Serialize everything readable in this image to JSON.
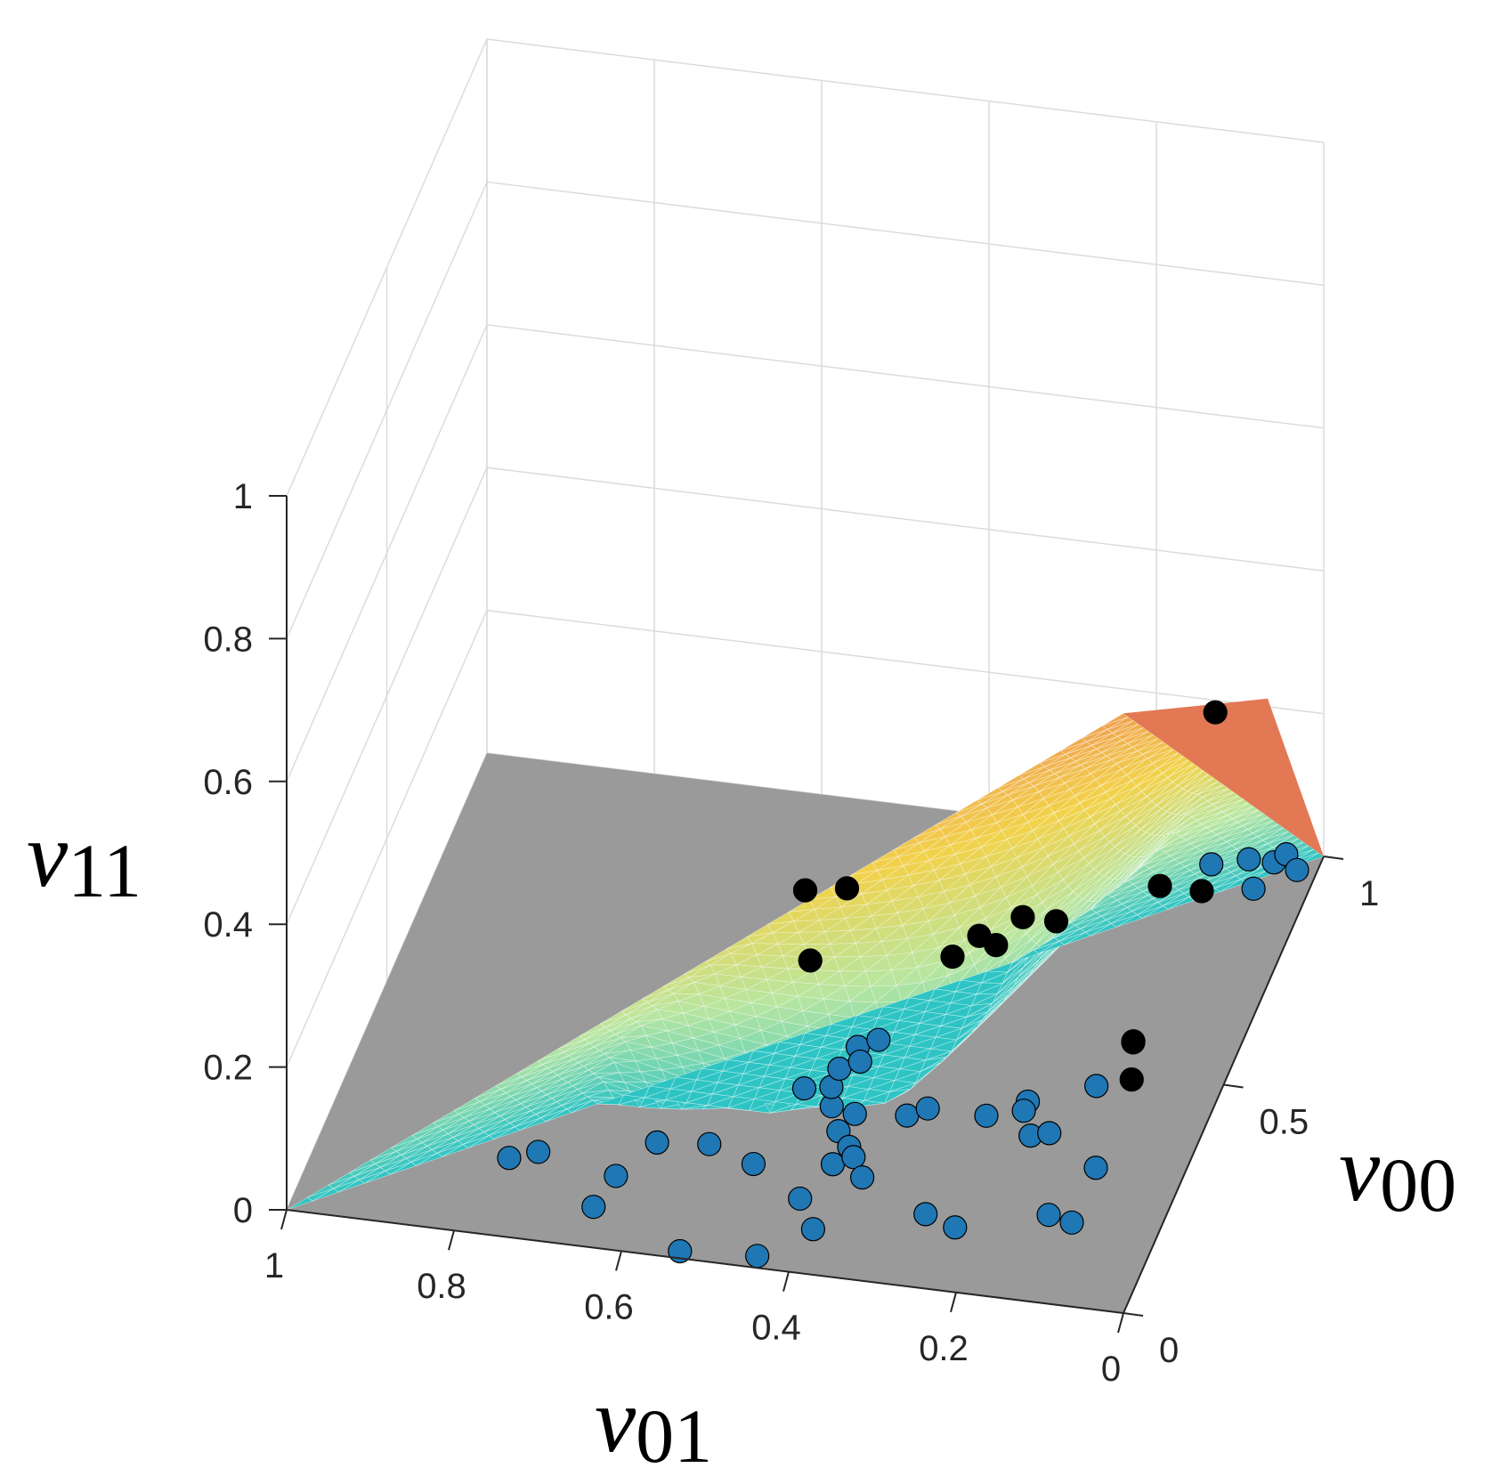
{
  "chart_data": {
    "type": "scatter",
    "projection": "3d",
    "title": "",
    "axes": {
      "x": {
        "label": "ν01",
        "symbol": "ν",
        "subscript": "01",
        "range": [
          0,
          1
        ],
        "ticks": [
          0,
          0.2,
          0.4,
          0.6,
          0.8,
          1
        ],
        "tick_labels": [
          "0",
          "0.2",
          "0.4",
          "0.6",
          "0.8",
          "1"
        ]
      },
      "y": {
        "label": "ν00",
        "symbol": "ν",
        "subscript": "00",
        "range": [
          0,
          1
        ],
        "ticks": [
          0,
          0.5,
          1
        ],
        "tick_labels": [
          "0",
          "0.5",
          "1"
        ]
      },
      "z": {
        "label": "ν11",
        "symbol": "ν",
        "subscript": "11",
        "range": [
          0,
          1
        ],
        "ticks": [
          0,
          0.2,
          0.4,
          0.6,
          0.8,
          1
        ],
        "tick_labels": [
          "0",
          "0.2",
          "0.4",
          "0.6",
          "0.8",
          "1"
        ]
      }
    },
    "grid": true,
    "legend": "none",
    "surfaces": [
      {
        "name": "",
        "kind": "surface",
        "colormap": [
          "#2ec4c4",
          "#b8e6a0",
          "#f2d24a",
          "#f0a050"
        ],
        "mesh_color": "#ffffff",
        "peak": [
          0,
          0,
          0.84
        ],
        "corners": [
          [
            1,
            0,
            0
          ],
          [
            0,
            1,
            0
          ],
          [
            0,
            0,
            0.84
          ]
        ]
      },
      {
        "name": "",
        "kind": "plane",
        "color": "#e2714c",
        "corners": [
          [
            0,
            0,
            0.84
          ],
          [
            0,
            1,
            0
          ],
          [
            0,
            0.72,
            0.4
          ]
        ]
      },
      {
        "name": "",
        "kind": "floor",
        "color": "#9a9a9a",
        "corners": [
          [
            1,
            0,
            0
          ],
          [
            1,
            1,
            0
          ],
          [
            0,
            1,
            0
          ],
          [
            0,
            0,
            0
          ]
        ]
      }
    ],
    "series": [
      {
        "color": "#1f77b4",
        "points": [
          [
            0.12,
            0.94,
            0.01
          ],
          [
            0.08,
            0.96,
            0.01
          ],
          [
            0.05,
            0.96,
            0.01
          ],
          [
            0.04,
            0.98,
            0.01
          ],
          [
            0.02,
            0.95,
            0.01
          ],
          [
            0.06,
            0.9,
            0.01
          ],
          [
            0.77,
            0.15,
            0.01
          ],
          [
            0.74,
            0.17,
            0.01
          ],
          [
            0.64,
            0.14,
            0.01
          ],
          [
            0.61,
            0.22,
            0.01
          ],
          [
            0.55,
            0.23,
            0.01
          ],
          [
            0.65,
            0.07,
            0.01
          ],
          [
            0.53,
            0.0,
            0.01
          ],
          [
            0.49,
            0.2,
            0.01
          ],
          [
            0.43,
            0.34,
            0.01
          ],
          [
            0.47,
            0.37,
            0.01
          ],
          [
            0.44,
            0.38,
            0.01
          ],
          [
            0.44,
            0.42,
            0.01
          ],
          [
            0.43,
            0.47,
            0.01
          ],
          [
            0.42,
            0.44,
            0.01
          ],
          [
            0.41,
            0.49,
            0.01
          ],
          [
            0.4,
            0.33,
            0.01
          ],
          [
            0.41,
            0.29,
            0.01
          ],
          [
            0.39,
            0.26,
            0.01
          ],
          [
            0.4,
            0.22,
            0.01
          ],
          [
            0.38,
            0.24,
            0.01
          ],
          [
            0.36,
            0.2,
            0.01
          ],
          [
            0.42,
            0.14,
            0.01
          ],
          [
            0.39,
            0.08,
            0.01
          ],
          [
            0.44,
            0.01,
            0.01
          ],
          [
            0.34,
            0.34,
            0.01
          ],
          [
            0.32,
            0.36,
            0.01
          ],
          [
            0.25,
            0.36,
            0.01
          ],
          [
            0.21,
            0.4,
            0.01
          ],
          [
            0.21,
            0.38,
            0.01
          ],
          [
            0.19,
            0.33,
            0.01
          ],
          [
            0.17,
            0.34,
            0.01
          ],
          [
            0.14,
            0.45,
            0.01
          ],
          [
            0.1,
            0.28,
            0.01
          ],
          [
            0.27,
            0.14,
            0.01
          ],
          [
            0.23,
            0.12,
            0.01
          ],
          [
            0.13,
            0.17,
            0.01
          ],
          [
            0.1,
            0.16,
            0.01
          ],
          [
            0.12,
            0.55,
            0.01
          ]
        ]
      },
      {
        "color": "#000000",
        "points": [
          [
            0.12,
            0.96,
            0.21
          ],
          [
            0.2,
            0.5,
            0.2
          ],
          [
            0.24,
            0.5,
            0.2
          ],
          [
            0.5,
            0.5,
            0.2
          ],
          [
            0.45,
            0.5,
            0.21
          ],
          [
            0.28,
            0.45,
            0.2
          ],
          [
            0.3,
            0.4,
            0.2
          ],
          [
            0.1,
            0.6,
            0.2
          ],
          [
            0.05,
            0.6,
            0.2
          ],
          [
            0.47,
            0.4,
            0.17
          ],
          [
            0.26,
            0.45,
            0.19
          ],
          [
            0.06,
            0.3,
            0.18
          ],
          [
            0.05,
            0.25,
            0.16
          ]
        ]
      }
    ]
  }
}
